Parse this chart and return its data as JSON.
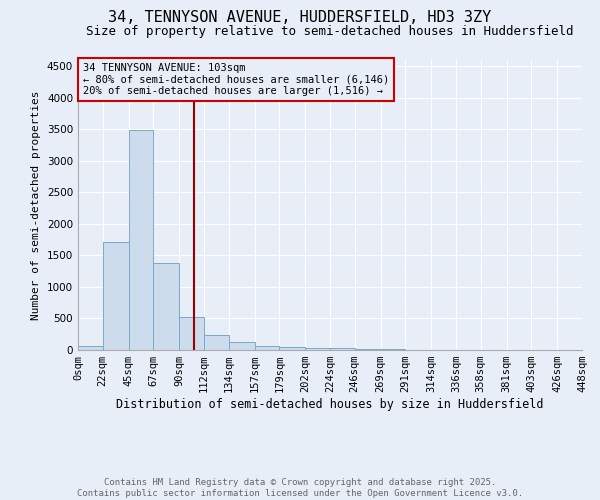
{
  "title_line1": "34, TENNYSON AVENUE, HUDDERSFIELD, HD3 3ZY",
  "title_line2": "Size of property relative to semi-detached houses in Huddersfield",
  "xlabel": "Distribution of semi-detached houses by size in Huddersfield",
  "ylabel": "Number of semi-detached properties",
  "footnote1": "Contains HM Land Registry data © Crown copyright and database right 2025.",
  "footnote2": "Contains public sector information licensed under the Open Government Licence v3.0.",
  "annotation_line1": "34 TENNYSON AVENUE: 103sqm",
  "annotation_line2": "← 80% of semi-detached houses are smaller (6,146)",
  "annotation_line3": "20% of semi-detached houses are larger (1,516) →",
  "property_line_x": 103,
  "bar_bins": [
    0,
    22,
    45,
    67,
    90,
    112,
    134,
    157,
    179,
    202,
    224,
    246,
    269,
    291,
    314,
    336,
    358,
    381,
    403,
    426,
    448
  ],
  "bar_heights": [
    70,
    1720,
    3490,
    1380,
    530,
    235,
    120,
    70,
    50,
    35,
    25,
    10,
    15,
    5,
    0,
    0,
    0,
    0,
    0,
    0
  ],
  "bar_color": "#ccdcec",
  "bar_edgecolor": "#7aaac8",
  "vline_color": "#990000",
  "ylim": [
    0,
    4600
  ],
  "yticks": [
    0,
    500,
    1000,
    1500,
    2000,
    2500,
    3000,
    3500,
    4000,
    4500
  ],
  "background_color": "#e8eef8",
  "grid_color": "#ffffff",
  "annotation_box_edgecolor": "#cc0000",
  "annotation_fontsize": 7.5,
  "title_fontsize1": 11,
  "title_fontsize2": 9,
  "ylabel_fontsize": 8,
  "xlabel_fontsize": 8.5,
  "tick_fontsize": 7.5,
  "footnote_fontsize": 6.5
}
